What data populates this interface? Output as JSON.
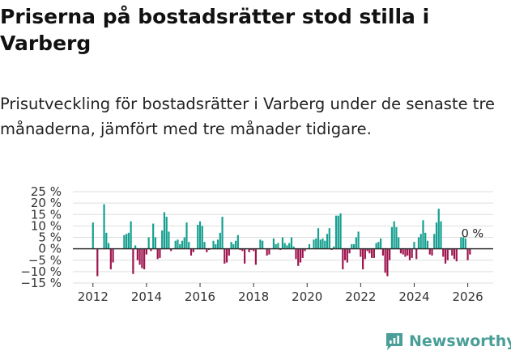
{
  "title": "Priserna på bostadsrätter stod stilla i Varberg",
  "subtitle": "Prisutveckling för bostadsrätter i Varberg under de senaste tre månaderna, jämfört med tre månader tidigare.",
  "brand": {
    "name": "Newsworthy",
    "color": "#4a9e98"
  },
  "chart_data": {
    "type": "bar",
    "title": "Priserna på bostadsrätter stod stilla i Varberg",
    "xlabel": "",
    "ylabel": "",
    "x_start": 2012.0,
    "step": 0.08333,
    "ylim": [
      -15,
      25
    ],
    "yticks": [
      25,
      20,
      15,
      10,
      5,
      0,
      -5,
      -10,
      -15
    ],
    "ytick_labels": [
      "25 %",
      "20 %",
      "15 %",
      "10 %",
      "5 %",
      "0 %",
      "−5 %",
      "−10 %",
      "−15 %"
    ],
    "xticks": [
      2012,
      2014,
      2016,
      2018,
      2020,
      2022,
      2024,
      2026
    ],
    "xtick_labels": [
      "2012",
      "2014",
      "2016",
      "2018",
      "2020",
      "2022",
      "2024",
      "2026"
    ],
    "grid": true,
    "colors": {
      "positive": "#16a090",
      "negative": "#9e1650"
    },
    "annotation": {
      "label": "0 %",
      "x": 2026.0,
      "y": 0
    },
    "values": [
      11.5,
      0,
      -12,
      0,
      0,
      19.5,
      7,
      2.5,
      -9,
      -6,
      0,
      0,
      0,
      0,
      6,
      6.5,
      7,
      12,
      -11,
      1.5,
      -5,
      -7,
      -8.5,
      -9,
      -2.5,
      5,
      -1,
      11,
      5,
      -4.5,
      -4,
      8,
      16,
      14,
      7.5,
      -1,
      0,
      3.5,
      4,
      2,
      3.5,
      5,
      11.5,
      3,
      -3,
      -1.5,
      0,
      10.5,
      12,
      10,
      3,
      -1.5,
      -0.5,
      0,
      3.5,
      2,
      4,
      7,
      14,
      -6.5,
      -6,
      -3,
      3,
      2,
      3.5,
      6,
      -0.5,
      -1,
      -6.5,
      0,
      -1.5,
      -0.5,
      -1,
      -7,
      0,
      4,
      3.5,
      0,
      -3,
      -2.5,
      0,
      4.5,
      2,
      2.5,
      -0.5,
      5,
      2.5,
      1.5,
      2.5,
      5,
      1,
      -4.5,
      -7.5,
      -6,
      -4,
      -1,
      0,
      2,
      0,
      4,
      4.5,
      9,
      4,
      4.5,
      3.5,
      6.5,
      9,
      -0.5,
      1,
      14.5,
      14.5,
      15.5,
      -9,
      -5,
      -6,
      -2,
      2,
      2,
      5,
      7.5,
      -3.5,
      -9,
      -4.5,
      -1,
      -2,
      -4,
      -4,
      2.5,
      3,
      4.5,
      -3,
      -10.5,
      -12,
      -5,
      9.5,
      12,
      9.5,
      5,
      -2,
      -2.5,
      -3.5,
      -3,
      -5,
      -4,
      3,
      -4.5,
      5,
      6.5,
      12.5,
      7,
      3.5,
      -2.5,
      -3,
      6.5,
      11.5,
      17.5,
      12,
      -3.5,
      -6.5,
      -5,
      -0.5,
      -3,
      -4.5,
      -5.5,
      0,
      5,
      5,
      4.5,
      -5,
      -2.5
    ]
  }
}
